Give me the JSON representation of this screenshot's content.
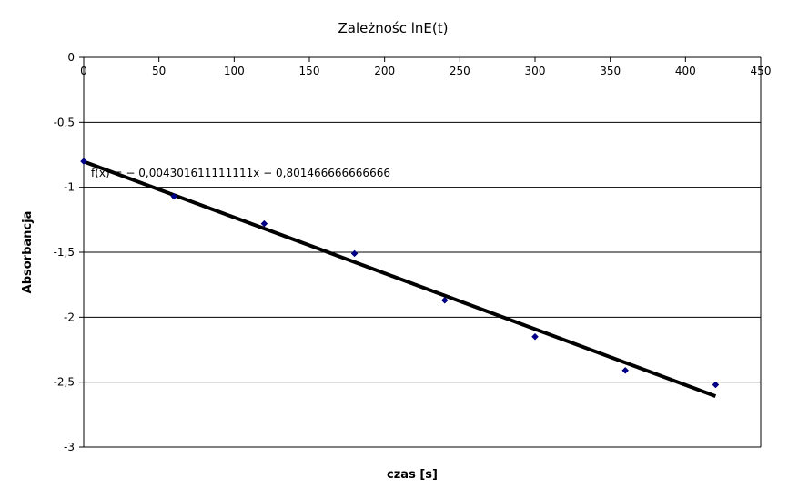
{
  "chart_data": {
    "type": "scatter",
    "title": "Zależnośc lnE(t)",
    "xlabel": "czas [s]",
    "ylabel": "Absorbancja",
    "xlim": [
      0,
      450
    ],
    "ylim": [
      -3,
      0
    ],
    "x_ticks": [
      "0",
      "50",
      "100",
      "150",
      "200",
      "250",
      "300",
      "350",
      "400",
      "450"
    ],
    "y_ticks": [
      "0",
      "-0,5",
      "-1",
      "-1,5",
      "-2",
      "-2,5",
      "-3"
    ],
    "grid": "horizontal",
    "series": [
      {
        "marker": "diamond",
        "color": "#00008b",
        "x": [
          0,
          60,
          120,
          180,
          240,
          300,
          360,
          420
        ],
        "y": [
          -0.8,
          -1.07,
          -1.28,
          -1.51,
          -1.87,
          -2.15,
          -2.41,
          -2.52
        ]
      }
    ],
    "trendline": {
      "equation": "f(x) = − 0,004301611111111x − 0,801466666666666",
      "slope": -0.004301611111111,
      "intercept": -0.801466666666666,
      "x_range": [
        0,
        420
      ],
      "color": "#000000"
    }
  }
}
